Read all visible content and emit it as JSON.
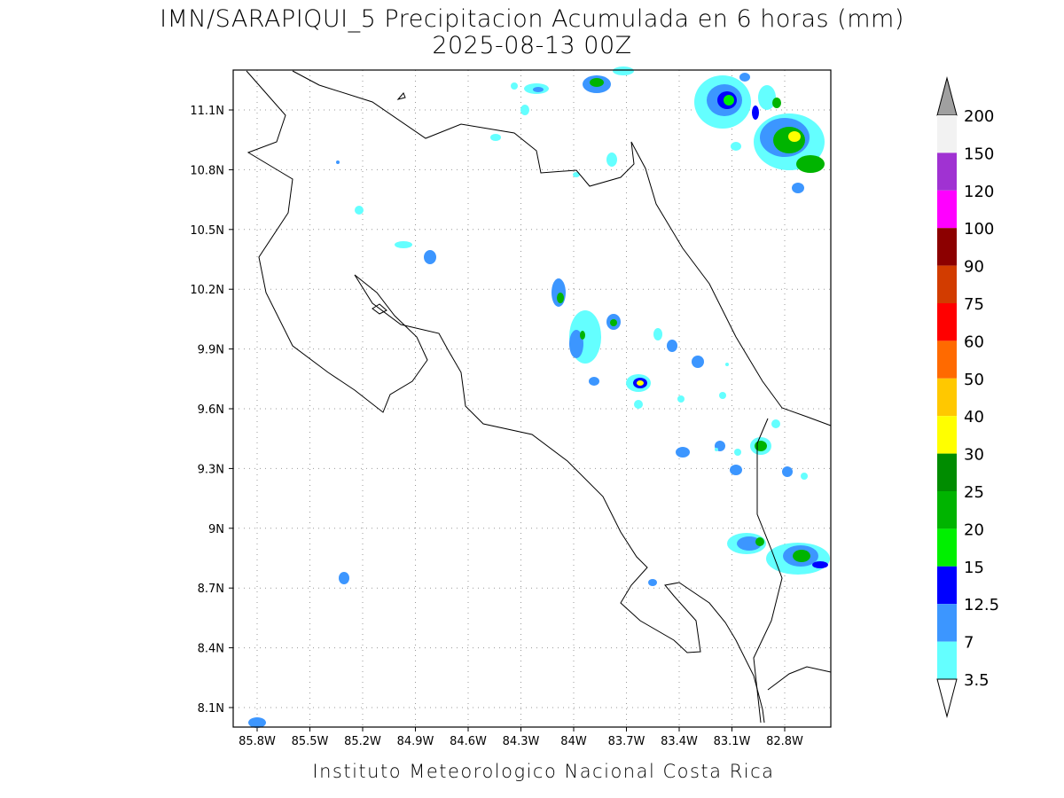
{
  "title": "IMN/SARAPIQUI_5 Precipitacion Acumulada en 6 horas (mm)",
  "subtitle": "2025-08-13 00Z",
  "footer": "Instituto Meteorologico Nacional Costa Rica",
  "lon_labels": [
    "85.8W",
    "85.5W",
    "85.2W",
    "84.9W",
    "84.6W",
    "84.3W",
    "84W",
    "83.7W",
    "83.4W",
    "83.1W",
    "82.8W"
  ],
  "lat_labels": [
    "11.1N",
    "10.8N",
    "10.5N",
    "10.2N",
    "9.9N",
    "9.6N",
    "9.3N",
    "9N",
    "8.7N",
    "8.4N",
    "8.1N"
  ],
  "colorbar": {
    "labels": [
      200,
      150,
      120,
      100,
      90,
      75,
      60,
      50,
      40,
      30,
      25,
      20,
      15,
      12.5,
      7,
      3.5
    ],
    "colors": [
      "#f2f2f2",
      "#a032d2",
      "#ff00ff",
      "#8c0000",
      "#d23c00",
      "#ff0000",
      "#ff6a00",
      "#ffc800",
      "#ffff00",
      "#008c00",
      "#00b400",
      "#00f000",
      "#0000ff",
      "#3c96ff",
      "#64ffff"
    ],
    "over_color": "#a0a0a0",
    "under_color": "#ffffff"
  }
}
